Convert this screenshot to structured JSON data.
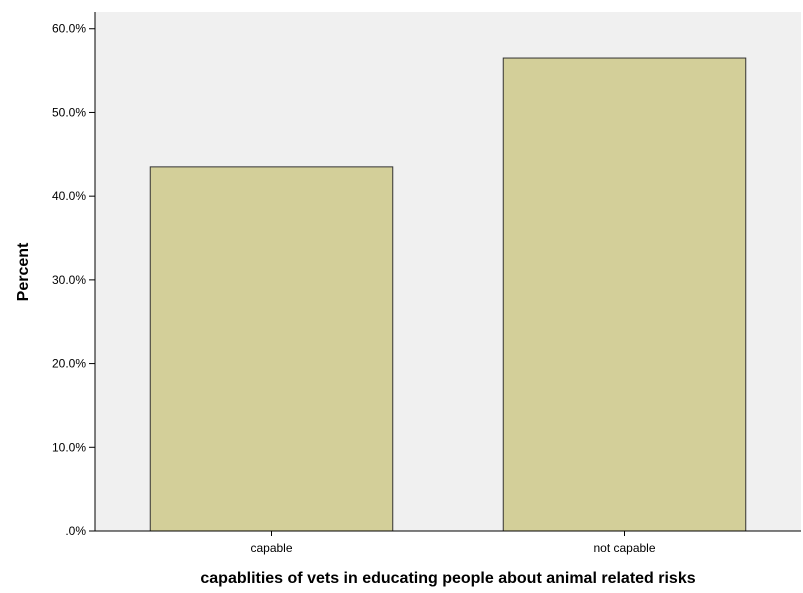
{
  "chart_data": {
    "type": "bar",
    "title": "",
    "xlabel": "capablities of vets in educating people about animal related risks",
    "ylabel": "Percent",
    "categories": [
      "capable",
      "not capable"
    ],
    "values": [
      43.5,
      56.5
    ],
    "ylim": [
      0,
      62
    ],
    "yticks": [
      0,
      10,
      20,
      30,
      40,
      50,
      60
    ],
    "ytick_labels": [
      ".0%",
      "10.0%",
      "20.0%",
      "30.0%",
      "40.0%",
      "50.0%",
      "60.0%"
    ],
    "grid": false,
    "legend": "none",
    "colors": {
      "bar_fill": "#d3cf99",
      "bar_stroke": "#333333",
      "plot_background": "#f0f0f0",
      "axis": "#000000"
    }
  }
}
